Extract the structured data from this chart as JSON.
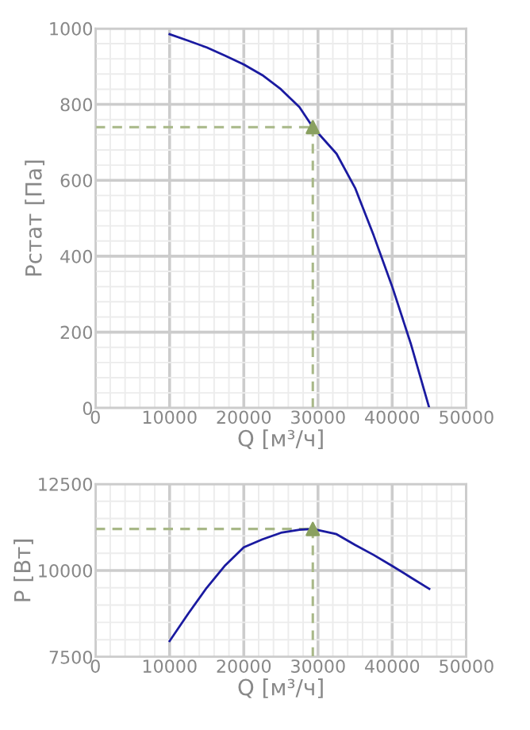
{
  "chart_data": [
    {
      "type": "line",
      "xlabel": "Q [м³/ч]",
      "ylabel": "Pстат [Па]",
      "xlim": [
        0,
        50000
      ],
      "ylim": [
        0,
        1000
      ],
      "xticks": [
        0,
        10000,
        20000,
        30000,
        40000,
        50000
      ],
      "yticks": [
        0,
        200,
        400,
        600,
        800,
        1000
      ],
      "grid": true,
      "legend": false,
      "series": [
        {
          "color": "#1a1aa0",
          "marker": "none",
          "x": [
            10000,
            12500,
            15000,
            17500,
            20000,
            22500,
            25000,
            27500,
            29300,
            32500,
            35000,
            37500,
            40000,
            42500,
            45000
          ],
          "values": [
            985,
            968,
            950,
            928,
            905,
            877,
            840,
            793,
            740,
            670,
            580,
            455,
            320,
            170,
            0
          ]
        },
        {
          "type": "scatter",
          "color": "#8aa060",
          "marker": "triangle",
          "x": [
            29300
          ],
          "values": [
            740
          ]
        }
      ],
      "ref_lines": [
        {
          "axis": "x",
          "value": 29300,
          "color": "#a8b888",
          "line_style": "dashed"
        },
        {
          "axis": "y",
          "value": 740,
          "color": "#a8b888",
          "line_style": "dashed"
        }
      ]
    },
    {
      "type": "line",
      "xlabel": "Q [м³/ч]",
      "ylabel": "P [Вт]",
      "xlim": [
        0,
        50000
      ],
      "ylim": [
        7500,
        12500
      ],
      "xticks": [
        0,
        10000,
        20000,
        30000,
        40000,
        50000
      ],
      "yticks": [
        7500,
        10000,
        12500
      ],
      "grid": true,
      "legend": false,
      "series": [
        {
          "color": "#1a1aa0",
          "marker": "none",
          "x": [
            10000,
            12500,
            15000,
            17500,
            20000,
            22500,
            25000,
            27500,
            29300,
            32500,
            35000,
            37500,
            40000,
            42500,
            45000
          ],
          "values": [
            7960,
            8750,
            9500,
            10150,
            10670,
            10900,
            11090,
            11180,
            11200,
            11050,
            10740,
            10450,
            10130,
            9800,
            9470
          ]
        },
        {
          "type": "scatter",
          "color": "#8aa060",
          "marker": "triangle",
          "x": [
            29300
          ],
          "values": [
            11200
          ]
        }
      ],
      "ref_lines": [
        {
          "axis": "x",
          "value": 29300,
          "color": "#a8b888",
          "line_style": "dashed"
        },
        {
          "axis": "y",
          "value": 11200,
          "color": "#a8b888",
          "line_style": "dashed"
        }
      ]
    }
  ]
}
